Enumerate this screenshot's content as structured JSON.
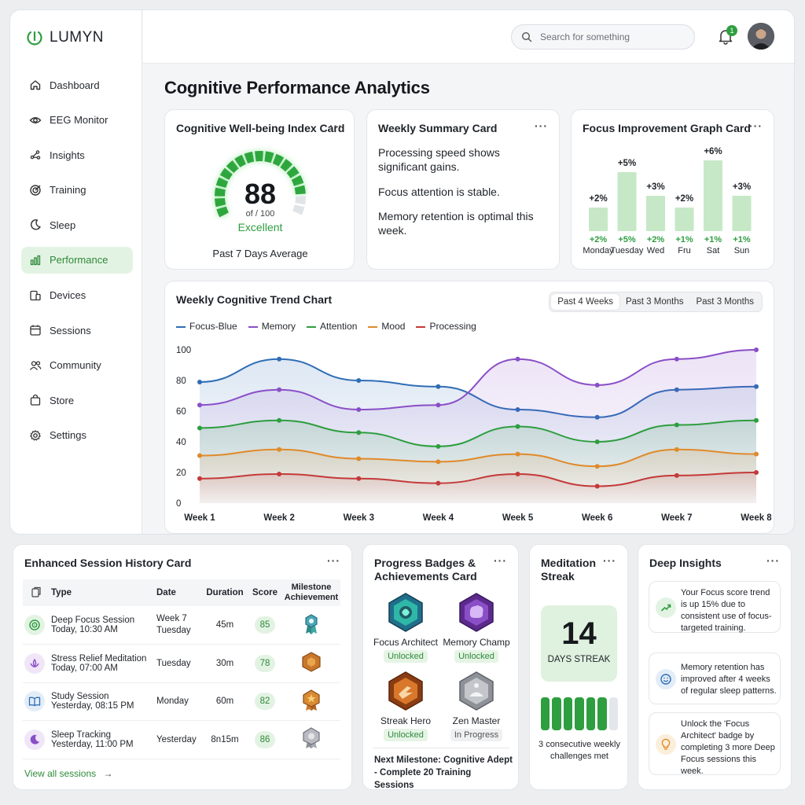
{
  "brand": {
    "name": "LUMYN"
  },
  "sidebar": {
    "items": [
      {
        "label": "Dashboard",
        "icon": "home-icon"
      },
      {
        "label": "EEG Monitor",
        "icon": "eye-icon"
      },
      {
        "label": "Insights",
        "icon": "sparkle-icon"
      },
      {
        "label": "Training",
        "icon": "target-icon"
      },
      {
        "label": "Sleep",
        "icon": "moon-icon"
      },
      {
        "label": "Performance",
        "icon": "bar-chart-icon",
        "active": true
      },
      {
        "label": "Devices",
        "icon": "devices-icon"
      },
      {
        "label": "Sessions",
        "icon": "calendar-icon"
      },
      {
        "label": "Community",
        "icon": "users-icon"
      },
      {
        "label": "Store",
        "icon": "bag-icon"
      },
      {
        "label": "Settings",
        "icon": "gear-icon"
      }
    ]
  },
  "header": {
    "search_placeholder": "Search for something",
    "notification_count": "1"
  },
  "page": {
    "title": "Cognitive Performance Analytics"
  },
  "wellbeing": {
    "title": "Cognitive Well-being Index Card",
    "score": "88",
    "score_max": "of / 100",
    "rating": "Excellent",
    "caption": "Past 7 Days Average",
    "value": 88,
    "max": 100
  },
  "weekly_summary": {
    "title": "Weekly Summary Card",
    "lines": [
      "Processing speed shows significant gains.",
      "Focus attention is stable.",
      "Memory retention is optimal this week."
    ]
  },
  "focus_card": {
    "title": "Focus Improvement Graph Card"
  },
  "trend_card": {
    "title": "Weekly Cognitive Trend Chart",
    "tabs": [
      "Past 4 Weeks",
      "Past 3 Months",
      "Past 3 Months"
    ]
  },
  "chart_data": [
    {
      "type": "bar",
      "categories": [
        "Monday",
        "Tuesday",
        "Wed",
        "Fru",
        "Sat",
        "Sun"
      ],
      "values": [
        2,
        5,
        3,
        2,
        6,
        3
      ],
      "top_labels": [
        "+2%",
        "+5%",
        "+3%",
        "+2%",
        "+6%",
        "+3%"
      ],
      "bottom_labels": [
        "+2%",
        "+5%",
        "+2%",
        "+1%",
        "+1%",
        "+1%"
      ],
      "colors": {
        "bar": "#c6e8c6",
        "label": "#2e9e3f"
      }
    },
    {
      "type": "line",
      "x": [
        "Week 1",
        "Week 2",
        "Week 3",
        "Week 4",
        "Week 5",
        "Week 6",
        "Week 7",
        "Week 8"
      ],
      "ylim": [
        0,
        100
      ],
      "yticks": [
        100,
        80,
        60,
        40,
        20,
        0
      ],
      "legend": "top-left",
      "series": [
        {
          "name": "Focus-Blue",
          "color": "#2f6db5",
          "values": [
            79,
            94,
            80,
            76,
            61,
            56,
            74,
            76
          ]
        },
        {
          "name": "Memory",
          "color": "#8a4fc7",
          "values": [
            64,
            74,
            61,
            64,
            94,
            77,
            94,
            100
          ]
        },
        {
          "name": "Attention",
          "color": "#2e9e3f",
          "values": [
            49,
            54,
            46,
            37,
            50,
            40,
            51,
            54
          ]
        },
        {
          "name": "Mood",
          "color": "#e08a2a",
          "values": [
            31,
            35,
            29,
            27,
            32,
            24,
            35,
            32
          ]
        },
        {
          "name": "Processing",
          "color": "#c43a3a",
          "values": [
            16,
            19,
            16,
            13,
            19,
            11,
            18,
            20
          ]
        }
      ]
    }
  ],
  "session_history": {
    "title": "Enhanced Session History Card",
    "columns": [
      "Type",
      "Date",
      "Duration",
      "Score",
      "Milestone Achievement"
    ],
    "rows": [
      {
        "name": "Deep Focus Session",
        "when": "Today, 10:30 AM",
        "date": "Week 7 Tuesday",
        "duration": "45m",
        "score": "85",
        "icon": "target-icon",
        "badge": "ribbon-medal-icon"
      },
      {
        "name": "Stress Relief Meditation",
        "when": "Today, 07:00 AM",
        "date": "Tuesday",
        "duration": "30m",
        "score": "78",
        "icon": "lotus-icon",
        "badge": "bronze-hexagon-icon"
      },
      {
        "name": "Study Session",
        "when": "Yesterday, 08:15 PM",
        "date": "Monday",
        "duration": "60m",
        "score": "82",
        "icon": "book-icon",
        "badge": "gold-star-badge-icon"
      },
      {
        "name": "Sleep Tracking",
        "when": "Yesterday, 11:00 PM",
        "date": "Yesterday",
        "duration": "8n15m",
        "score": "86",
        "icon": "moon-icon",
        "badge": "silver-badge-icon"
      }
    ],
    "view_all": "View all sessions"
  },
  "badges": {
    "title": "Progress Badges & Achievements Card",
    "items": [
      {
        "name": "Focus Architect",
        "status": "Unlocked",
        "icon": "focus-architect-badge-icon"
      },
      {
        "name": "Memory Champ",
        "status": "Unlocked",
        "icon": "memory-champ-badge-icon"
      },
      {
        "name": "Streak Hero",
        "status": "Unlocked",
        "icon": "streak-hero-badge-icon"
      },
      {
        "name": "Zen Master",
        "status": "In Progress",
        "icon": "zen-master-badge-icon"
      }
    ],
    "next_milestone": "Next Milestone: Cognitive Adept - Complete 20 Training Sessions"
  },
  "streak": {
    "title": "Meditation Streak",
    "days": "14",
    "label": "DAYS STREAK",
    "bars_filled": 6,
    "bars_total": 7,
    "caption": "3 consecutive weekly challenges met"
  },
  "insights": {
    "title": "Deep Insights",
    "items": [
      {
        "text": "Your Focus score trend is up 15% due to consistent use of focus-targeted training.",
        "icon": "trend-up-icon"
      },
      {
        "text": "Memory retention has improved after 4 weeks of regular sleep patterns.",
        "icon": "smile-icon"
      },
      {
        "text": "Unlock the 'Focus Architect' badge by completing 3 more Deep Focus sessions this week.",
        "icon": "lightbulb-icon"
      }
    ]
  }
}
